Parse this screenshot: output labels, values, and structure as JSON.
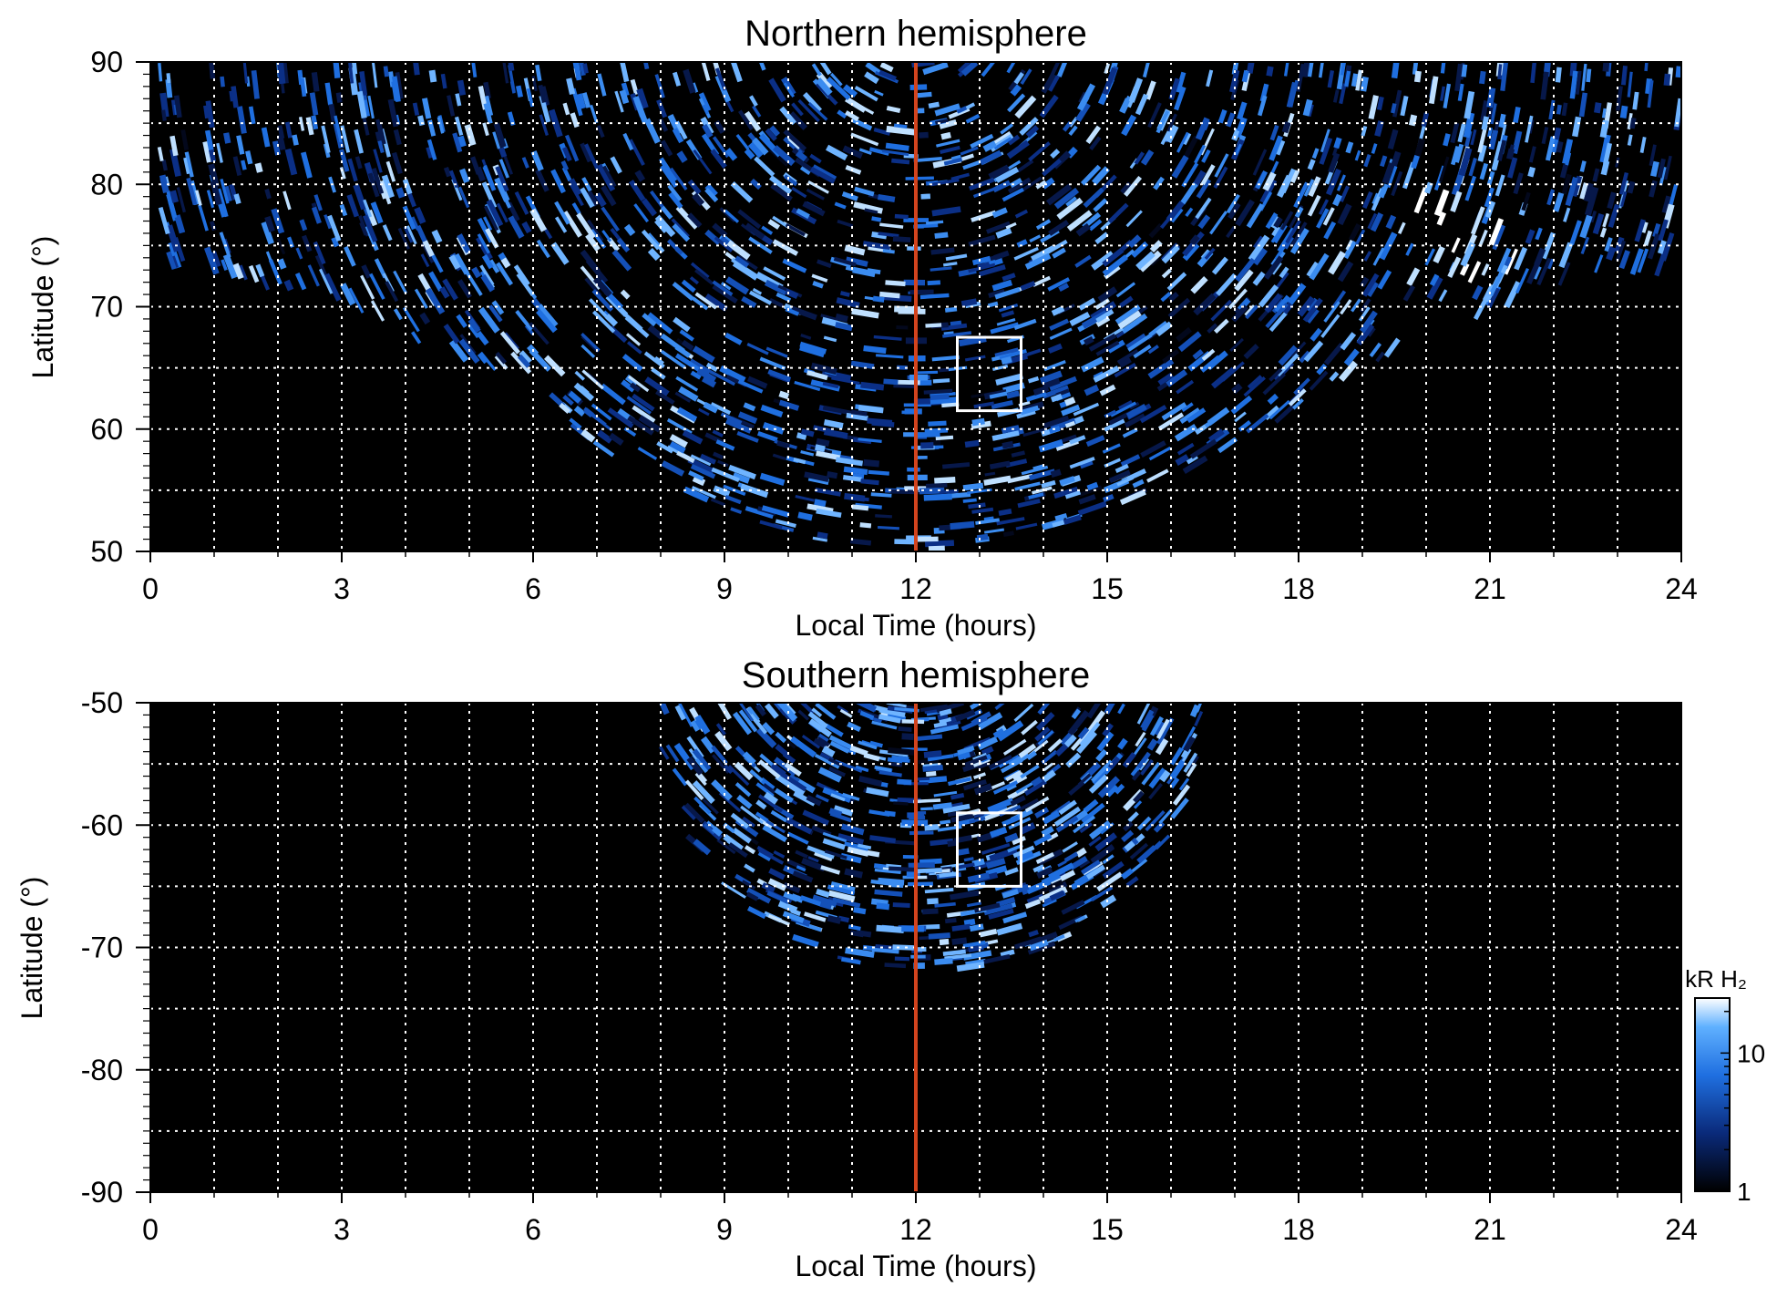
{
  "chart_data": [
    {
      "type": "heatmap",
      "title": "Northern hemisphere",
      "xlabel": "Local Time (hours)",
      "ylabel": "Latitude (°)",
      "xlim": [
        0,
        24
      ],
      "ylim": [
        50,
        90
      ],
      "xticks": [
        "0",
        "3",
        "6",
        "9",
        "12",
        "15",
        "18",
        "21",
        "24"
      ],
      "yticks": [
        "50",
        "60",
        "70",
        "80",
        "90"
      ],
      "grid": true,
      "coverage": {
        "edge_latitude_at_noon": 50,
        "edge_latitude_at_midnight": 73.5
      },
      "reference_line": {
        "local_time": 12,
        "color": "#d2441e"
      },
      "box": {
        "lt_min": 12.65,
        "lt_max": 13.65,
        "lat_min": 61.5,
        "lat_max": 67.5
      }
    },
    {
      "type": "heatmap",
      "title": "Southern hemisphere",
      "xlabel": "Local Time (hours)",
      "ylabel": "Latitude (°)",
      "xlim": [
        0,
        24
      ],
      "ylim": [
        -90,
        -50
      ],
      "xticks": [
        "0",
        "3",
        "6",
        "9",
        "12",
        "15",
        "18",
        "21",
        "24"
      ],
      "yticks": [
        "-50",
        "-60",
        "-70",
        "-80",
        "-90"
      ],
      "grid": true,
      "coverage": {
        "center_local_time": 12.2,
        "half_width_hours": 4.3,
        "edge_latitude_min": -72
      },
      "reference_line": {
        "local_time": 12,
        "color": "#d2441e"
      },
      "box": {
        "lt_min": 12.65,
        "lt_max": 13.65,
        "lat_min": -65,
        "lat_max": -59
      }
    }
  ],
  "colorbar": {
    "title": "kR H₂",
    "ticks": [
      "1",
      "10"
    ],
    "range": [
      1,
      25
    ],
    "scale": "log",
    "colors": [
      "#000000",
      "#0a2a7a",
      "#1f6fe0",
      "#5fb0ff",
      "#ffffff"
    ]
  },
  "colors": {
    "background": "#000000",
    "grid": "#ffffff",
    "box": "#ffffff",
    "noon_line": "#d2441e"
  }
}
